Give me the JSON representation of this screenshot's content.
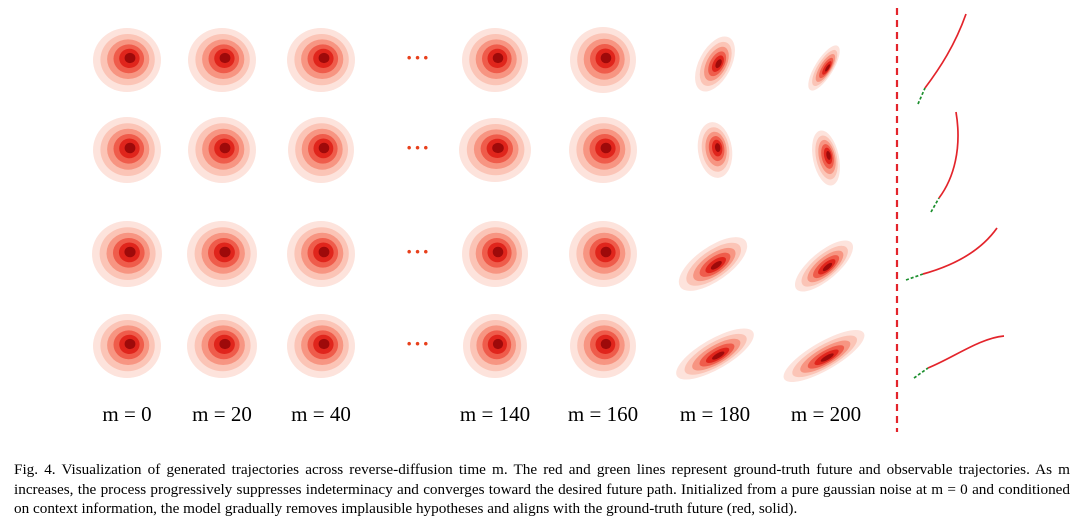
{
  "figure": {
    "column_labels": [
      "m = 0",
      "m = 20",
      "m = 40",
      "m = 140",
      "m = 160",
      "m = 180",
      "m = 200"
    ],
    "ellipsis": "···",
    "rows": 4,
    "colors": {
      "density_levels": [
        "#fde3dc",
        "#fbc4b6",
        "#f79582",
        "#ef5c4b",
        "#e0251c",
        "#9e0a0a"
      ],
      "ground_truth_future": "#e3242b",
      "observed": "#1c8f2e",
      "divider": "#e3242b"
    }
  },
  "caption": {
    "text": "Fig. 4.  Visualization of generated trajectories across reverse-diffusion time m. The red and green lines represent ground-truth future and observable trajectories. As m increases, the process progressively suppresses indeterminacy and converges toward the desired future path. Initialized from a pure gaussian noise at m = 0 and conditioned on context information, the model gradually removes implausible hypotheses and aligns with the ground-truth future (red, solid)."
  }
}
